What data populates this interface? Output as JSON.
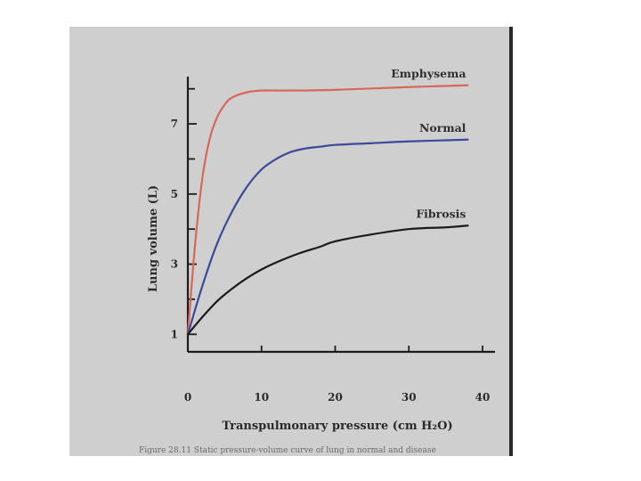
{
  "chart_data": {
    "type": "line",
    "title": "",
    "xlabel": "Transpulmonary pressure (cm H₂O)",
    "ylabel": "Lung volume (L)",
    "xlim": [
      0,
      40
    ],
    "ylim": [
      0.5,
      8.5
    ],
    "x_ticks": [
      0,
      10,
      20,
      30,
      40
    ],
    "y_tick_labels": [
      1,
      3,
      5,
      7
    ],
    "y_minor_ticks": [
      2,
      4,
      6,
      8
    ],
    "grid": false,
    "legend": "none",
    "series": [
      {
        "name": "Emphysema",
        "color": "#d9665a",
        "x": [
          0,
          1,
          2,
          3,
          4,
          5,
          6,
          8,
          10,
          12,
          14,
          20,
          30,
          38
        ],
        "y": [
          1.0,
          3.6,
          5.5,
          6.6,
          7.2,
          7.55,
          7.75,
          7.9,
          7.95,
          7.95,
          7.95,
          7.97,
          8.05,
          8.1
        ]
      },
      {
        "name": "Normal",
        "color": "#3b4a9a",
        "x": [
          0,
          2,
          4,
          6,
          8,
          10,
          12,
          14,
          16,
          18,
          20,
          25,
          30,
          38
        ],
        "y": [
          1.0,
          2.4,
          3.6,
          4.5,
          5.2,
          5.7,
          6.0,
          6.2,
          6.3,
          6.35,
          6.4,
          6.45,
          6.5,
          6.55
        ]
      },
      {
        "name": "Fibrosis",
        "color": "#1b1b1b",
        "x": [
          0,
          2,
          4,
          6,
          8,
          10,
          12,
          15,
          18,
          20,
          25,
          30,
          35,
          38
        ],
        "y": [
          1.0,
          1.5,
          1.95,
          2.3,
          2.6,
          2.85,
          3.05,
          3.3,
          3.5,
          3.65,
          3.85,
          4.0,
          4.05,
          4.1
        ]
      }
    ]
  },
  "caption": {
    "text": "Figure 28.11 Static pressure-volume curve of lung in normal and disease"
  }
}
